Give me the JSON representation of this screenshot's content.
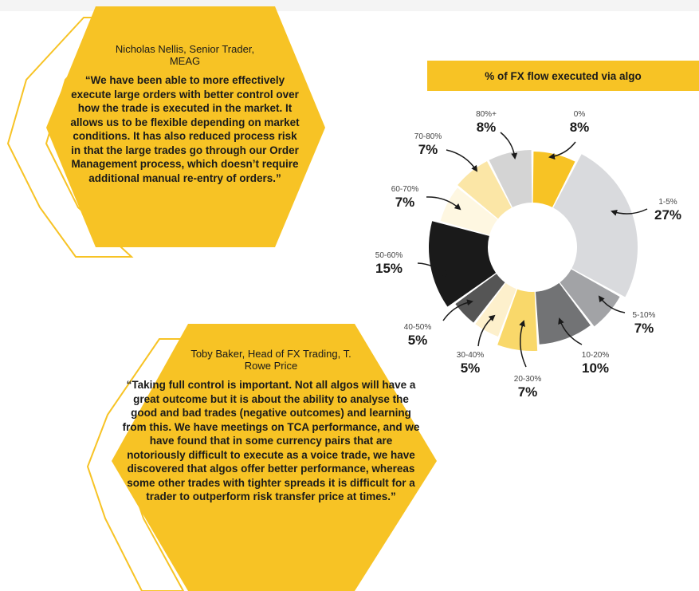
{
  "quotes": [
    {
      "name": "Nicholas Nellis, Senior Trader, MEAG",
      "text": "“We have been able to more effectively execute large orders with better control over how the trade is executed in the market. It allows us to be flexible depending on market conditions. It has also reduced process risk in that the large trades go through our Order Management process, which doesn’t require additional manual re-entry of orders.”"
    },
    {
      "name": "Toby Baker, Head of FX Trading, T. Rowe Price",
      "text": "“Taking full control is important. Not all algos will have a great outcome but it is about the ability to analyse the good and bad trades (negative outcomes) and learning from this. We have meetings on TCA performance, and we have found that in some currency pairs that are notoriously difficult to execute as a voice trade, we have discovered that algos offer better performance, whereas some other trades with tighter spreads it is difficult for a trader to outperform risk transfer price at times.”"
    }
  ],
  "colors": {
    "accent": "#f7c325",
    "dark": "#1a1a1a"
  },
  "chart_data": {
    "type": "pie",
    "variant": "donut",
    "title": "% of FX flow executed via algo",
    "categories": [
      "0%",
      "1-5%",
      "5-10%",
      "10-20%",
      "20-30%",
      "30-40%",
      "40-50%",
      "50-60%",
      "60-70%",
      "70-80%",
      "80%+"
    ],
    "values": [
      8,
      27,
      7,
      10,
      7,
      5,
      5,
      15,
      7,
      7,
      8
    ],
    "value_labels": [
      "8%",
      "27%",
      "7%",
      "10%",
      "7%",
      "5%",
      "5%",
      "15%",
      "7%",
      "7%",
      "8%"
    ],
    "colors": [
      "#f7c325",
      "#d9dadd",
      "#a2a3a6",
      "#727375",
      "#f9d86a",
      "#fdf0cc",
      "#555555",
      "#1a1a1a",
      "#fef7e1",
      "#fbe6a6",
      "#d4d4d4"
    ]
  }
}
